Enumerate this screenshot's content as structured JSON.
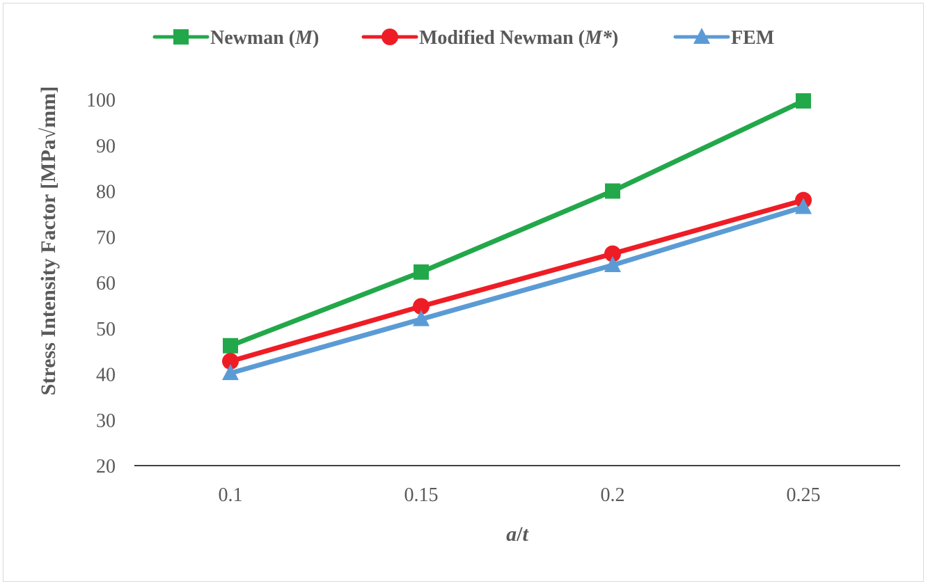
{
  "chart_data": {
    "type": "line",
    "title": "",
    "x": [
      "0.1",
      "0.15",
      "0.2",
      "0.25"
    ],
    "xlabel": {
      "italic_a": "a",
      "slash": "/",
      "italic_t": "t"
    },
    "ylabel": "Stress Intensity Factor [MPa√mm]",
    "ylim": [
      20,
      100
    ],
    "yticks": [
      "20",
      "30",
      "40",
      "50",
      "60",
      "70",
      "80",
      "90",
      "100"
    ],
    "legend_position": "top",
    "series": [
      {
        "name": "Newman (M)",
        "legend_parts": {
          "prefix": "Newman (",
          "italic": "M",
          "suffix": ")"
        },
        "marker": "square",
        "color": "#22a84a",
        "values": [
          46.2,
          62.3,
          80.0,
          99.7
        ]
      },
      {
        "name": "Modified Newman (M*)",
        "legend_parts": {
          "prefix": "Modified Newman (",
          "italic": "M*",
          "suffix": ")"
        },
        "marker": "circle",
        "color": "#ee1d25",
        "values": [
          42.8,
          54.8,
          66.3,
          78.0
        ]
      },
      {
        "name": "FEM",
        "legend_parts": {
          "prefix": "FEM",
          "italic": "",
          "suffix": ""
        },
        "marker": "triangle",
        "color": "#5b9bd5",
        "values": [
          40.2,
          52.0,
          63.8,
          76.5
        ]
      }
    ]
  }
}
